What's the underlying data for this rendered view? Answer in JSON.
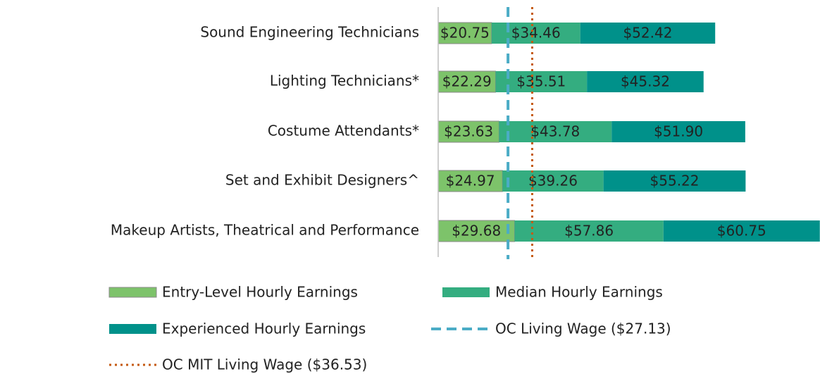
{
  "chart_data": {
    "type": "stacked-barh",
    "categories": [
      "Sound Engineering Technicians",
      "Lighting Technicians*",
      "Costume Attendants*",
      "Set and Exhibit Designers^",
      "Makeup Artists, Theatrical and Performance"
    ],
    "series": [
      {
        "name": "Entry-Level Hourly Earnings",
        "color": "#7dc36a",
        "values": [
          20.75,
          22.29,
          23.63,
          24.97,
          29.68
        ],
        "value_labels": [
          "$20.75",
          "$22.29",
          "$23.63",
          "$24.97",
          "$29.68"
        ]
      },
      {
        "name": "Median Hourly Earnings",
        "color": "#34ad80",
        "values": [
          34.46,
          35.51,
          43.78,
          39.26,
          57.86
        ],
        "value_labels": [
          "$34.46",
          "$35.51",
          "$43.78",
          "$39.26",
          "$57.86"
        ]
      },
      {
        "name": "Experienced Hourly Earnings",
        "color": "#00918a",
        "values": [
          52.42,
          45.32,
          51.9,
          55.22,
          60.75
        ],
        "value_labels": [
          "$52.42",
          "$45.32",
          "$51.90",
          "$55.22",
          "$60.75"
        ]
      }
    ],
    "reference_lines": [
      {
        "name": "OC Living Wage ($27.13)",
        "value": 27.13,
        "color": "#4bacc6",
        "style": "dashed"
      },
      {
        "name": "OC MIT Living Wage ($36.53)",
        "value": 36.53,
        "color": "#c55a11",
        "style": "dotted"
      }
    ],
    "xlim": [
      0,
      150
    ]
  }
}
